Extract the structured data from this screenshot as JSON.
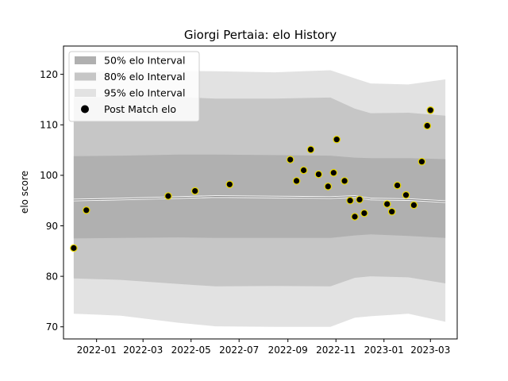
{
  "chart_data": {
    "type": "area",
    "title": "Giorgi Pertaia: elo History",
    "xlabel": "",
    "ylabel": "elo score",
    "ylim": [
      67.6,
      125.6
    ],
    "xlim": [
      "2021-11-20",
      "2023-04-04"
    ],
    "x_ticks": [
      "2022-01",
      "2022-03",
      "2022-05",
      "2022-07",
      "2022-09",
      "2022-11",
      "2023-01",
      "2023-03"
    ],
    "y_ticks": [
      70,
      80,
      90,
      100,
      110,
      120
    ],
    "grid": false,
    "legend_position": "top-left",
    "legend": [
      {
        "label": "50% elo Interval",
        "color": "#b0b0b0"
      },
      {
        "label": "80% elo Interval",
        "color": "#c6c6c6"
      },
      {
        "label": "95% elo Interval",
        "color": "#e2e2e2"
      },
      {
        "label": "Post Match elo",
        "color": "#000000"
      }
    ],
    "bands": {
      "dates": [
        "2021-12-03",
        "2022-02-01",
        "2022-04-15",
        "2022-06-01",
        "2022-08-15",
        "2022-10-25",
        "2022-11-25",
        "2022-12-15",
        "2023-02-01",
        "2023-03-20"
      ],
      "mean": [
        95.1,
        95.3,
        95.6,
        95.8,
        95.7,
        95.6,
        95.8,
        95.3,
        95.2,
        94.8
      ],
      "p50_low": [
        87.5,
        87.6,
        87.7,
        87.6,
        87.6,
        87.6,
        88.1,
        88.3,
        88.0,
        87.6
      ],
      "p50_high": [
        103.8,
        103.9,
        104.1,
        104.1,
        104.0,
        103.9,
        103.5,
        103.4,
        103.4,
        103.2
      ],
      "p80_low": [
        79.6,
        79.3,
        78.5,
        78.0,
        78.1,
        78.0,
        79.7,
        80.0,
        79.8,
        78.6
      ],
      "p80_high": [
        115.4,
        115.5,
        115.5,
        115.2,
        115.2,
        115.4,
        113.2,
        112.3,
        112.4,
        111.8
      ],
      "p95_low": [
        72.6,
        72.2,
        70.8,
        70.1,
        70.0,
        70.0,
        71.8,
        72.1,
        72.6,
        71.0
      ],
      "p95_high": [
        120.5,
        120.6,
        120.7,
        120.6,
        120.4,
        120.8,
        119.2,
        118.2,
        118.0,
        119.0
      ]
    },
    "series": [
      {
        "name": "Post Match elo",
        "x": [
          "2021-12-03",
          "2021-12-19",
          "2022-04-02",
          "2022-05-06",
          "2022-06-19",
          "2022-09-04",
          "2022-09-12",
          "2022-09-21",
          "2022-09-30",
          "2022-10-10",
          "2022-10-22",
          "2022-10-29",
          "2022-11-02",
          "2022-11-12",
          "2022-11-19",
          "2022-11-25",
          "2022-12-01",
          "2022-12-07",
          "2023-01-05",
          "2023-01-11",
          "2023-01-18",
          "2023-01-29",
          "2023-02-08",
          "2023-02-18",
          "2023-02-25",
          "2023-03-01"
        ],
        "values": [
          85.6,
          93.1,
          95.9,
          96.9,
          98.2,
          103.1,
          98.9,
          101.0,
          105.1,
          100.2,
          97.8,
          100.5,
          107.1,
          98.9,
          95.0,
          91.8,
          95.2,
          92.5,
          94.3,
          92.8,
          98.0,
          96.1,
          94.1,
          102.7,
          109.8,
          112.9
        ]
      }
    ]
  }
}
